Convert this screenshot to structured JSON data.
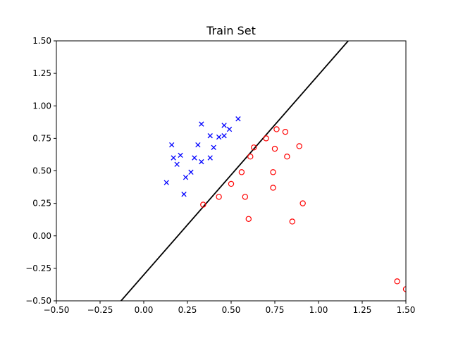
{
  "chart_data": {
    "type": "scatter",
    "title": "Train Set",
    "xlabel": "",
    "ylabel": "",
    "xlim": [
      -0.5,
      1.5
    ],
    "ylim": [
      -0.5,
      1.5
    ],
    "xticks": [
      "−0.50",
      "−0.25",
      "0.00",
      "0.25",
      "0.50",
      "0.75",
      "1.00",
      "1.25",
      "1.50"
    ],
    "yticks": [
      "−0.50",
      "−0.25",
      "0.00",
      "0.25",
      "0.50",
      "0.75",
      "1.00",
      "1.25",
      "1.50"
    ],
    "xtick_values": [
      -0.5,
      -0.25,
      0,
      0.25,
      0.5,
      0.75,
      1.0,
      1.25,
      1.5
    ],
    "ytick_values": [
      -0.5,
      -0.25,
      0,
      0.25,
      0.5,
      0.75,
      1.0,
      1.25,
      1.5
    ],
    "grid": false,
    "series": [
      {
        "marker": "x",
        "color": "#0000ff",
        "x": [
          0.13,
          0.16,
          0.17,
          0.19,
          0.21,
          0.23,
          0.24,
          0.27,
          0.29,
          0.31,
          0.33,
          0.33,
          0.38,
          0.38,
          0.4,
          0.43,
          0.46,
          0.46,
          0.49,
          0.54
        ],
        "y": [
          0.41,
          0.7,
          0.6,
          0.55,
          0.62,
          0.32,
          0.45,
          0.49,
          0.6,
          0.7,
          0.57,
          0.86,
          0.77,
          0.6,
          0.68,
          0.76,
          0.85,
          0.77,
          0.82,
          0.9
        ]
      },
      {
        "marker": "o",
        "color": "#ff0000",
        "x": [
          0.34,
          0.43,
          0.5,
          0.56,
          0.58,
          0.6,
          0.61,
          0.63,
          0.7,
          0.74,
          0.74,
          0.75,
          0.76,
          0.81,
          0.82,
          0.85,
          0.89,
          0.91,
          1.45,
          1.5
        ],
        "y": [
          0.24,
          0.3,
          0.4,
          0.49,
          0.3,
          0.13,
          0.61,
          0.68,
          0.75,
          0.49,
          0.37,
          0.67,
          0.82,
          0.8,
          0.61,
          0.11,
          0.69,
          0.25,
          -0.35,
          -0.41
        ]
      }
    ],
    "lines": [
      {
        "color": "#000000",
        "x": [
          -0.13,
          1.17
        ],
        "y": [
          -0.5,
          1.5
        ]
      }
    ]
  }
}
